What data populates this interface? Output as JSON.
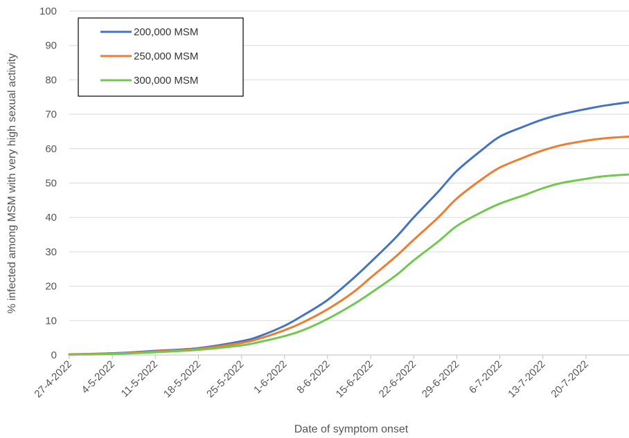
{
  "chart_data": {
    "type": "line",
    "xlabel": "Date of symptom onset",
    "ylabel": "% infected among MSM with very high sexual activity",
    "ylim": [
      0,
      100
    ],
    "yticks": [
      0,
      10,
      20,
      30,
      40,
      50,
      60,
      70,
      80,
      90,
      100
    ],
    "xticks": [
      "27-4-2022",
      "4-5-2022",
      "11-5-2022",
      "18-5-2022",
      "25-5-2022",
      "1-6-2022",
      "8-6-2022",
      "15-6-2022",
      "22-6-2022",
      "29-6-2022",
      "6-7-2022",
      "13-7-2022",
      "20-7-2022"
    ],
    "grid": "horizontal",
    "legend": "top-left",
    "x": [
      0,
      7,
      14,
      21,
      28,
      31,
      35,
      38,
      42,
      46,
      49,
      53,
      56,
      60,
      63,
      67,
      70,
      74,
      77,
      80,
      84,
      87,
      91
    ],
    "series": [
      {
        "name": "200,000 MSM",
        "color": "#4472C4",
        "values": [
          0.2,
          0.5,
          1.2,
          2.0,
          4.0,
          5.5,
          8.5,
          11.5,
          16.0,
          22.0,
          27.0,
          34.0,
          40.0,
          47.5,
          53.5,
          59.5,
          63.5,
          66.5,
          68.5,
          70.0,
          71.5,
          72.5,
          73.5
        ]
      },
      {
        "name": "250,000 MSM",
        "color": "#ED7D31",
        "values": [
          0.2,
          0.4,
          1.0,
          1.8,
          3.5,
          4.8,
          7.2,
          9.5,
          13.3,
          18.0,
          22.5,
          28.5,
          33.5,
          40.0,
          45.5,
          51.0,
          54.5,
          57.5,
          59.5,
          61.0,
          62.3,
          63.0,
          63.5
        ]
      },
      {
        "name": "300,000 MSM",
        "color": "#70C850",
        "values": [
          0.1,
          0.3,
          0.8,
          1.5,
          2.8,
          3.8,
          5.5,
          7.2,
          10.5,
          14.5,
          18.0,
          23.0,
          27.5,
          33.0,
          37.5,
          41.5,
          44.0,
          46.5,
          48.5,
          50.0,
          51.2,
          52.0,
          52.5
        ]
      }
    ]
  }
}
